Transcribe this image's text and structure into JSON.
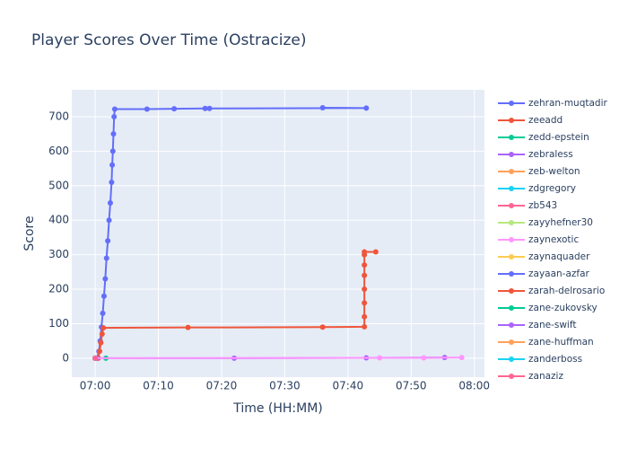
{
  "chart_data": {
    "type": "line",
    "title": "Player Scores Over Time (Ostracize)",
    "x_label": "Time (HH:MM)",
    "y_label": "Score",
    "xlim": [
      416.3,
      481.6
    ],
    "ylim": [
      -55,
      778
    ],
    "xticks": [
      {
        "value": 420,
        "label": "07:00"
      },
      {
        "value": 430,
        "label": "07:10"
      },
      {
        "value": 440,
        "label": "07:20"
      },
      {
        "value": 450,
        "label": "07:30"
      },
      {
        "value": 460,
        "label": "07:40"
      },
      {
        "value": 470,
        "label": "07:50"
      },
      {
        "value": 480,
        "label": "08:00"
      }
    ],
    "yticks": [
      0,
      100,
      200,
      300,
      400,
      500,
      600,
      700
    ],
    "grid": true,
    "legend": "right",
    "series": [
      {
        "name": "zehran-muqtadir",
        "color": "#636efa",
        "x": [
          420.3,
          420.6,
          420.8,
          421.0,
          421.2,
          421.4,
          421.6,
          421.8,
          422.0,
          422.2,
          422.4,
          422.6,
          422.7,
          422.8,
          422.9,
          423.0,
          423.1,
          428.2,
          432.5,
          437.4,
          438.1,
          462.9,
          456.0
        ],
        "values": [
          0,
          20,
          50,
          90,
          130,
          180,
          230,
          290,
          340,
          400,
          450,
          510,
          560,
          600,
          650,
          700,
          722,
          722,
          723,
          724,
          724,
          725,
          726
        ]
      },
      {
        "name": "zeeadd",
        "color": "#EF553B",
        "x": [
          420.5,
          420.7,
          420.9,
          421.1,
          421.3,
          434.7,
          456.0,
          462.6,
          462.6,
          462.6,
          462.6,
          462.6,
          462.6,
          462.6,
          462.6,
          464.4
        ],
        "values": [
          0,
          20,
          45,
          70,
          88,
          89,
          90,
          91,
          120,
          160,
          200,
          240,
          270,
          300,
          308,
          308
        ]
      },
      {
        "name": "zedd-epstein",
        "color": "#00cc96",
        "x": [
          421.7
        ],
        "values": [
          0
        ]
      },
      {
        "name": "zebraless",
        "color": "#ab63fa",
        "x": [
          420.2,
          442.0,
          462.9,
          475.3
        ],
        "values": [
          0,
          0,
          1,
          2
        ]
      },
      {
        "name": "zeb-welton",
        "color": "#FFA15A",
        "x": [
          420.0
        ],
        "values": [
          0
        ]
      },
      {
        "name": "zdgregory",
        "color": "#19d3f3",
        "x": [
          420.0
        ],
        "values": [
          0
        ]
      },
      {
        "name": "zb543",
        "color": "#FF6692",
        "x": [
          420.0
        ],
        "values": [
          0
        ]
      },
      {
        "name": "zayyhefner30",
        "color": "#B6E880",
        "x": [
          420.0
        ],
        "values": [
          0
        ]
      },
      {
        "name": "zaynexotic",
        "color": "#FF97FF",
        "x": [
          420.0,
          465.0,
          472.0,
          478.0
        ],
        "values": [
          0,
          1,
          1,
          2
        ]
      },
      {
        "name": "zaynaquader",
        "color": "#FECB52",
        "x": [
          420.0
        ],
        "values": [
          0
        ]
      },
      {
        "name": "zayaan-azfar",
        "color": "#636efa",
        "x": [
          420.0
        ],
        "values": [
          0
        ]
      },
      {
        "name": "zarah-delrosario",
        "color": "#EF553B",
        "x": [
          420.0
        ],
        "values": [
          0
        ]
      },
      {
        "name": "zane-zukovsky",
        "color": "#00cc96",
        "x": [
          420.0
        ],
        "values": [
          0
        ]
      },
      {
        "name": "zane-swift",
        "color": "#ab63fa",
        "x": [
          420.0
        ],
        "values": [
          0
        ]
      },
      {
        "name": "zane-huffman",
        "color": "#FFA15A",
        "x": [
          420.0
        ],
        "values": [
          0
        ]
      },
      {
        "name": "zanderboss",
        "color": "#19d3f3",
        "x": [
          420.0
        ],
        "values": [
          0
        ]
      },
      {
        "name": "zanaziz",
        "color": "#FF6692",
        "x": [
          420.0
        ],
        "values": [
          0
        ]
      }
    ]
  }
}
